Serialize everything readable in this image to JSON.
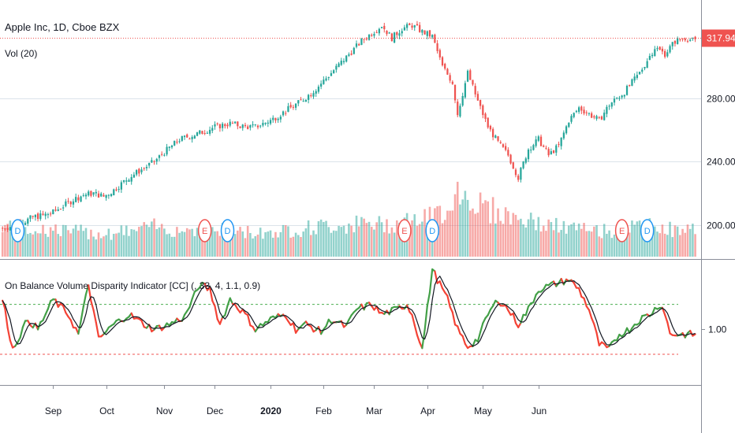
{
  "chart_data": {
    "type": "candlestick",
    "title": "Apple Inc, 1D, Cboe BZX",
    "volume_label": "Vol (20)",
    "last_price": "317.94",
    "x_ticks": [
      "Sep",
      "Oct",
      "Nov",
      "Dec",
      "2020",
      "Feb",
      "Mar",
      "Apr",
      "May",
      "Jun"
    ],
    "price_ticks": [
      "280.00",
      "240.00",
      "200.00"
    ],
    "price_tick_values": [
      280,
      240,
      200
    ],
    "price_range": [
      180,
      342
    ],
    "earnings_markers": [
      "E",
      "E",
      "E"
    ],
    "dividend_markers": [
      "D",
      "D",
      "D",
      "D"
    ],
    "price_path": [
      [
        0,
        198
      ],
      [
        6,
        200
      ],
      [
        12,
        205
      ],
      [
        16,
        206
      ],
      [
        20,
        208
      ],
      [
        24,
        212
      ],
      [
        28,
        216
      ],
      [
        32,
        219
      ],
      [
        36,
        220
      ],
      [
        40,
        218
      ],
      [
        44,
        222
      ],
      [
        50,
        230
      ],
      [
        56,
        236
      ],
      [
        60,
        240
      ],
      [
        64,
        246
      ],
      [
        70,
        254
      ],
      [
        78,
        258
      ],
      [
        84,
        262
      ],
      [
        90,
        264
      ],
      [
        96,
        262
      ],
      [
        100,
        262
      ],
      [
        106,
        266
      ],
      [
        112,
        272
      ],
      [
        118,
        278
      ],
      [
        124,
        286
      ],
      [
        130,
        296
      ],
      [
        136,
        306
      ],
      [
        142,
        316
      ],
      [
        146,
        321
      ],
      [
        150,
        326
      ],
      [
        154,
        318
      ],
      [
        158,
        324
      ],
      [
        162,
        326
      ],
      [
        166,
        322
      ],
      [
        170,
        319
      ],
      [
        174,
        300
      ],
      [
        178,
        290
      ],
      [
        180,
        270
      ],
      [
        184,
        296
      ],
      [
        188,
        278
      ],
      [
        192,
        262
      ],
      [
        196,
        252
      ],
      [
        200,
        244
      ],
      [
        204,
        230
      ],
      [
        208,
        248
      ],
      [
        212,
        254
      ],
      [
        216,
        244
      ],
      [
        220,
        250
      ],
      [
        224,
        266
      ],
      [
        228,
        274
      ],
      [
        232,
        270
      ],
      [
        236,
        266
      ],
      [
        240,
        276
      ],
      [
        246,
        284
      ],
      [
        252,
        296
      ],
      [
        258,
        312
      ],
      [
        262,
        308
      ],
      [
        266,
        316
      ],
      [
        270,
        318
      ],
      [
        274,
        316
      ]
    ],
    "volume_path": [
      [
        0,
        0.45
      ],
      [
        10,
        0.4
      ],
      [
        20,
        0.38
      ],
      [
        30,
        0.35
      ],
      [
        40,
        0.33
      ],
      [
        50,
        0.36
      ],
      [
        60,
        0.42
      ],
      [
        70,
        0.38
      ],
      [
        80,
        0.4
      ],
      [
        90,
        0.36
      ],
      [
        100,
        0.34
      ],
      [
        110,
        0.36
      ],
      [
        120,
        0.4
      ],
      [
        130,
        0.44
      ],
      [
        140,
        0.46
      ],
      [
        150,
        0.45
      ],
      [
        160,
        0.5
      ],
      [
        170,
        0.55
      ],
      [
        176,
        0.7
      ],
      [
        180,
        0.95
      ],
      [
        186,
        0.8
      ],
      [
        190,
        0.72
      ],
      [
        196,
        0.62
      ],
      [
        202,
        0.56
      ],
      [
        210,
        0.48
      ],
      [
        220,
        0.42
      ],
      [
        230,
        0.38
      ],
      [
        240,
        0.36
      ],
      [
        250,
        0.4
      ],
      [
        260,
        0.44
      ],
      [
        266,
        0.36
      ],
      [
        274,
        0.38
      ]
    ],
    "indicator_title": "On Balance Volume Disparity Indicator [CC] (, 33, 4, 1.1, 0.9)",
    "indicator_tick": "1.00",
    "indicator_tick_value": 1.0,
    "indicator_range": [
      0.78,
      1.26
    ],
    "upper_band": 1.1,
    "lower_band": 0.9,
    "indicator_path": [
      [
        0,
        1.12
      ],
      [
        4,
        0.92
      ],
      [
        10,
        1.04
      ],
      [
        14,
        1.0
      ],
      [
        20,
        1.12
      ],
      [
        26,
        1.06
      ],
      [
        30,
        0.98
      ],
      [
        34,
        1.18
      ],
      [
        38,
        0.96
      ],
      [
        44,
        1.02
      ],
      [
        50,
        1.06
      ],
      [
        56,
        1.02
      ],
      [
        60,
        1.0
      ],
      [
        66,
        1.02
      ],
      [
        72,
        1.05
      ],
      [
        78,
        1.18
      ],
      [
        82,
        1.16
      ],
      [
        86,
        1.02
      ],
      [
        90,
        1.12
      ],
      [
        96,
        1.06
      ],
      [
        100,
        1.0
      ],
      [
        106,
        1.04
      ],
      [
        112,
        1.06
      ],
      [
        116,
        1.0
      ],
      [
        120,
        1.02
      ],
      [
        126,
        0.99
      ],
      [
        130,
        1.04
      ],
      [
        136,
        1.01
      ],
      [
        140,
        1.08
      ],
      [
        146,
        1.1
      ],
      [
        150,
        1.06
      ],
      [
        156,
        1.08
      ],
      [
        160,
        1.1
      ],
      [
        162,
        1.06
      ],
      [
        166,
        0.92
      ],
      [
        170,
        1.24
      ],
      [
        172,
        1.2
      ],
      [
        176,
        1.12
      ],
      [
        180,
        1.0
      ],
      [
        184,
        0.93
      ],
      [
        188,
        0.96
      ],
      [
        192,
        1.06
      ],
      [
        196,
        1.12
      ],
      [
        200,
        1.08
      ],
      [
        204,
        1.02
      ],
      [
        208,
        1.08
      ],
      [
        212,
        1.16
      ],
      [
        218,
        1.18
      ],
      [
        224,
        1.2
      ],
      [
        228,
        1.16
      ],
      [
        232,
        1.08
      ],
      [
        236,
        0.94
      ],
      [
        240,
        0.92
      ],
      [
        244,
        0.98
      ],
      [
        248,
        1.0
      ],
      [
        252,
        1.04
      ],
      [
        256,
        1.06
      ],
      [
        260,
        1.1
      ],
      [
        262,
        1.07
      ],
      [
        264,
        0.98
      ]
    ]
  }
}
